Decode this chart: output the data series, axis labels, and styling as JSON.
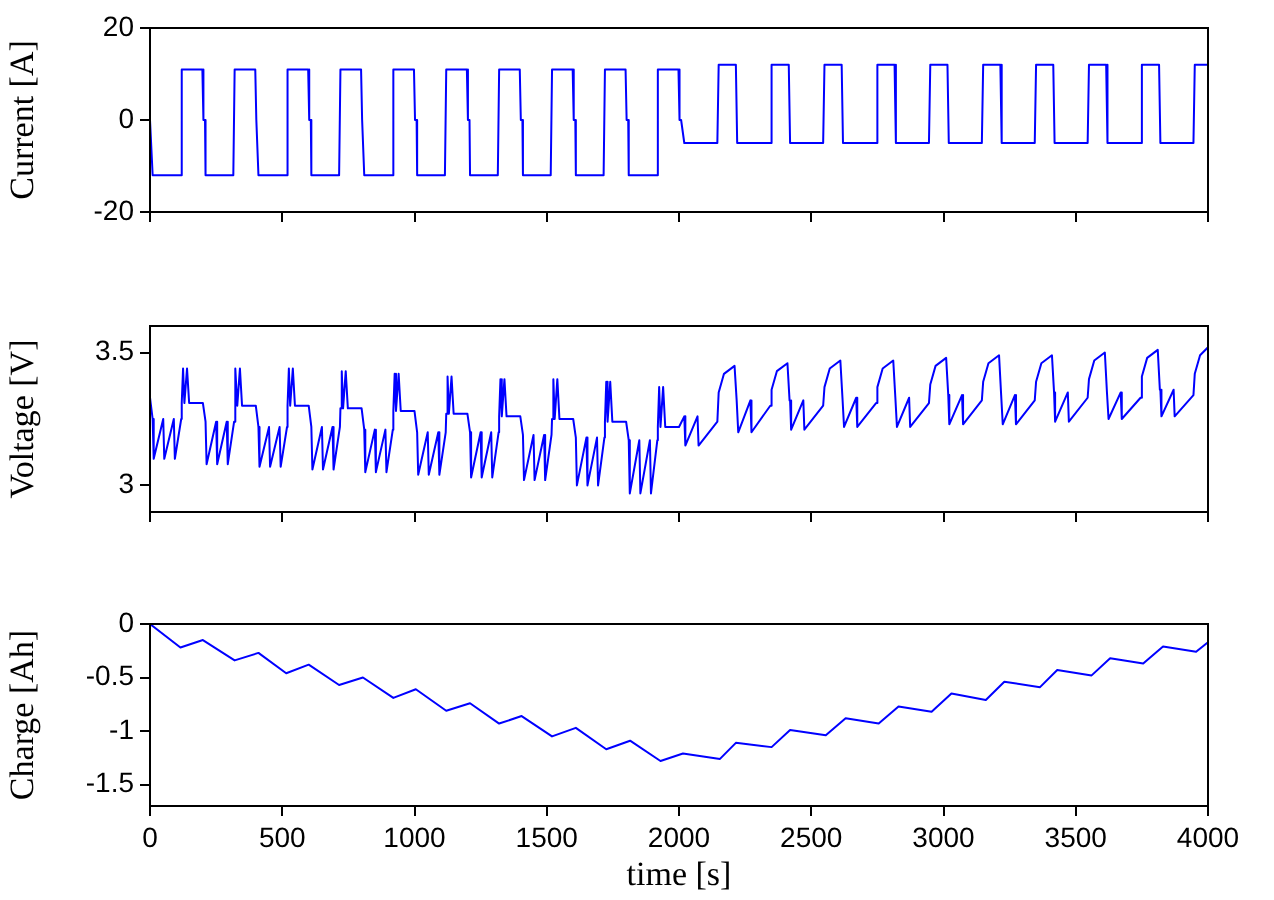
{
  "chart_data": [
    {
      "type": "line",
      "ylabel": "Current [A]",
      "xlim": [
        0,
        4000
      ],
      "xticks": [
        0,
        500,
        1000,
        1500,
        2000,
        2500,
        3000,
        3500,
        4000
      ],
      "ylim": [
        -20,
        20
      ],
      "yticks": [
        -20,
        0,
        20
      ],
      "tick_labels": "y",
      "x": [
        0,
        10,
        115,
        120,
        198,
        202,
        208,
        210,
        315,
        320,
        398,
        402,
        408,
        410,
        515,
        520,
        598,
        602,
        608,
        610,
        715,
        720,
        798,
        802,
        808,
        810,
        915,
        920,
        998,
        1002,
        1008,
        1010,
        1115,
        1120,
        1198,
        1202,
        1208,
        1210,
        1315,
        1320,
        1398,
        1402,
        1408,
        1410,
        1515,
        1520,
        1598,
        1602,
        1608,
        1610,
        1715,
        1720,
        1798,
        1802,
        1808,
        1810,
        1915,
        1920,
        1998,
        2002,
        2008,
        2020,
        2145,
        2150,
        2215,
        2220,
        2345,
        2350,
        2415,
        2420,
        2545,
        2550,
        2615,
        2620,
        2745,
        2750,
        2815,
        2820,
        2945,
        2950,
        3015,
        3020,
        3145,
        3150,
        3215,
        3220,
        3345,
        3350,
        3415,
        3420,
        3545,
        3550,
        3615,
        3620,
        3745,
        3750,
        3815,
        3820,
        3945,
        3950,
        4000
      ],
      "series": [
        {
          "color": "#0000ff",
          "values": [
            0,
            -12,
            -12,
            11,
            11,
            0,
            0,
            -12,
            -12,
            11,
            11,
            0,
            0,
            -12,
            -12,
            11,
            11,
            0,
            0,
            -12,
            -12,
            11,
            11,
            0,
            0,
            -12,
            -12,
            11,
            11,
            0,
            0,
            -12,
            -12,
            11,
            11,
            0,
            0,
            -12,
            -12,
            11,
            11,
            0,
            0,
            -12,
            -12,
            11,
            11,
            0,
            0,
            -12,
            -12,
            11,
            11,
            0,
            0,
            -12,
            -12,
            11,
            11,
            0,
            0,
            -5,
            -5,
            12,
            12,
            -5,
            -5,
            12,
            12,
            -5,
            -5,
            12,
            12,
            -5,
            -5,
            12,
            12,
            -5,
            -5,
            12,
            12,
            -5,
            -5,
            12,
            12,
            -5,
            -5,
            12,
            12,
            -5,
            -5,
            12,
            12,
            -5,
            -5,
            12,
            12,
            -5,
            -5,
            12,
            12
          ]
        }
      ]
    },
    {
      "type": "line",
      "ylabel": "Voltage [V]",
      "xlim": [
        0,
        4000
      ],
      "xticks": [
        0,
        500,
        1000,
        1500,
        2000,
        2500,
        3000,
        3500,
        4000
      ],
      "ylim": [
        2.9,
        3.6
      ],
      "yticks": [
        3,
        3.5
      ],
      "tick_labels": "y",
      "x": [
        0,
        10,
        14,
        50,
        54,
        90,
        94,
        118,
        120,
        125,
        130,
        140,
        148,
        200,
        210,
        214,
        250,
        254,
        290,
        294,
        318,
        320,
        325,
        330,
        340,
        348,
        400,
        410,
        414,
        450,
        454,
        490,
        494,
        518,
        520,
        525,
        530,
        540,
        548,
        600,
        610,
        614,
        650,
        654,
        690,
        694,
        718,
        720,
        725,
        730,
        740,
        748,
        800,
        810,
        814,
        850,
        854,
        890,
        894,
        918,
        920,
        925,
        930,
        940,
        948,
        1000,
        1010,
        1014,
        1050,
        1054,
        1090,
        1094,
        1118,
        1120,
        1125,
        1130,
        1140,
        1148,
        1200,
        1210,
        1214,
        1250,
        1254,
        1290,
        1294,
        1318,
        1320,
        1325,
        1330,
        1340,
        1348,
        1400,
        1410,
        1414,
        1450,
        1454,
        1490,
        1494,
        1518,
        1520,
        1525,
        1530,
        1540,
        1548,
        1600,
        1610,
        1614,
        1650,
        1654,
        1690,
        1694,
        1718,
        1720,
        1725,
        1730,
        1740,
        1748,
        1800,
        1810,
        1814,
        1850,
        1854,
        1890,
        1894,
        1918,
        1920,
        1925,
        1930,
        1940,
        1948,
        2000,
        2020,
        2024,
        2070,
        2074,
        2145,
        2150,
        2170,
        2210,
        2218,
        2220,
        2224,
        2270,
        2274,
        2345,
        2350,
        2370,
        2410,
        2418,
        2420,
        2424,
        2470,
        2474,
        2545,
        2550,
        2570,
        2610,
        2618,
        2620,
        2624,
        2670,
        2674,
        2745,
        2750,
        2770,
        2810,
        2818,
        2820,
        2824,
        2870,
        2874,
        2945,
        2950,
        2970,
        3010,
        3018,
        3020,
        3024,
        3070,
        3074,
        3145,
        3150,
        3170,
        3210,
        3218,
        3220,
        3224,
        3270,
        3274,
        3345,
        3350,
        3370,
        3410,
        3418,
        3420,
        3424,
        3470,
        3474,
        3545,
        3550,
        3570,
        3610,
        3618,
        3620,
        3624,
        3670,
        3674,
        3745,
        3750,
        3770,
        3810,
        3818,
        3820,
        3824,
        3870,
        3874,
        3945,
        3950,
        3970,
        4000
      ],
      "series": [
        {
          "color": "#0000ff",
          "values": [
            3.33,
            3.25,
            3.1,
            3.25,
            3.1,
            3.25,
            3.1,
            3.25,
            3.31,
            3.44,
            3.31,
            3.44,
            3.31,
            3.31,
            3.24,
            3.08,
            3.24,
            3.08,
            3.24,
            3.08,
            3.24,
            3.3,
            3.44,
            3.3,
            3.44,
            3.3,
            3.3,
            3.22,
            3.07,
            3.22,
            3.07,
            3.22,
            3.07,
            3.22,
            3.3,
            3.44,
            3.3,
            3.44,
            3.3,
            3.3,
            3.22,
            3.06,
            3.22,
            3.06,
            3.22,
            3.06,
            3.22,
            3.29,
            3.43,
            3.29,
            3.43,
            3.29,
            3.29,
            3.21,
            3.05,
            3.21,
            3.05,
            3.21,
            3.05,
            3.21,
            3.28,
            3.42,
            3.28,
            3.42,
            3.28,
            3.28,
            3.2,
            3.04,
            3.2,
            3.04,
            3.2,
            3.04,
            3.2,
            3.27,
            3.41,
            3.27,
            3.41,
            3.27,
            3.27,
            3.2,
            3.03,
            3.2,
            3.03,
            3.2,
            3.03,
            3.2,
            3.26,
            3.4,
            3.26,
            3.4,
            3.26,
            3.26,
            3.19,
            3.02,
            3.19,
            3.02,
            3.19,
            3.02,
            3.19,
            3.25,
            3.4,
            3.25,
            3.4,
            3.25,
            3.25,
            3.18,
            3,
            3.18,
            3,
            3.18,
            3,
            3.18,
            3.24,
            3.39,
            3.24,
            3.39,
            3.24,
            3.24,
            3.17,
            2.97,
            3.17,
            2.97,
            3.17,
            2.97,
            3.17,
            3.22,
            3.37,
            3.22,
            3.37,
            3.22,
            3.22,
            3.26,
            3.15,
            3.26,
            3.15,
            3.24,
            3.35,
            3.42,
            3.45,
            3.32,
            3.32,
            3.2,
            3.32,
            3.2,
            3.3,
            3.36,
            3.43,
            3.46,
            3.32,
            3.32,
            3.21,
            3.32,
            3.21,
            3.3,
            3.37,
            3.44,
            3.47,
            3.33,
            3.33,
            3.22,
            3.33,
            3.22,
            3.31,
            3.37,
            3.44,
            3.47,
            3.33,
            3.33,
            3.22,
            3.33,
            3.22,
            3.31,
            3.38,
            3.45,
            3.48,
            3.34,
            3.34,
            3.23,
            3.34,
            3.23,
            3.32,
            3.39,
            3.46,
            3.49,
            3.34,
            3.34,
            3.23,
            3.34,
            3.23,
            3.32,
            3.39,
            3.46,
            3.49,
            3.35,
            3.35,
            3.24,
            3.35,
            3.24,
            3.33,
            3.4,
            3.47,
            3.5,
            3.35,
            3.35,
            3.25,
            3.35,
            3.25,
            3.33,
            3.41,
            3.48,
            3.51,
            3.36,
            3.36,
            3.26,
            3.36,
            3.26,
            3.34,
            3.42,
            3.49,
            3.52
          ]
        }
      ]
    },
    {
      "type": "line",
      "ylabel": "Charge [Ah]",
      "xlabel": "time [s]",
      "xlim": [
        0,
        4000
      ],
      "xticks": [
        0,
        500,
        1000,
        1500,
        2000,
        2500,
        3000,
        3500,
        4000
      ],
      "ylim": [
        -1.7,
        0
      ],
      "yticks": [
        -1.5,
        -1,
        -0.5,
        0
      ],
      "x": [
        0,
        115,
        200,
        320,
        410,
        515,
        600,
        715,
        805,
        920,
        1005,
        1120,
        1210,
        1320,
        1405,
        1520,
        1610,
        1725,
        1815,
        1930,
        2015,
        2155,
        2215,
        2350,
        2420,
        2555,
        2630,
        2755,
        2830,
        2955,
        3030,
        3160,
        3230,
        3365,
        3430,
        3560,
        3630,
        3755,
        3830,
        3955,
        4000
      ],
      "series": [
        {
          "color": "#0000ff",
          "values": [
            0,
            -0.22,
            -0.15,
            -0.34,
            -0.27,
            -0.46,
            -0.38,
            -0.57,
            -0.5,
            -0.69,
            -0.61,
            -0.81,
            -0.74,
            -0.93,
            -0.86,
            -1.05,
            -0.97,
            -1.17,
            -1.09,
            -1.28,
            -1.21,
            -1.26,
            -1.11,
            -1.15,
            -0.99,
            -1.04,
            -0.88,
            -0.93,
            -0.77,
            -0.82,
            -0.65,
            -0.71,
            -0.54,
            -0.59,
            -0.43,
            -0.48,
            -0.32,
            -0.37,
            -0.21,
            -0.26,
            -0.17
          ]
        }
      ]
    }
  ]
}
